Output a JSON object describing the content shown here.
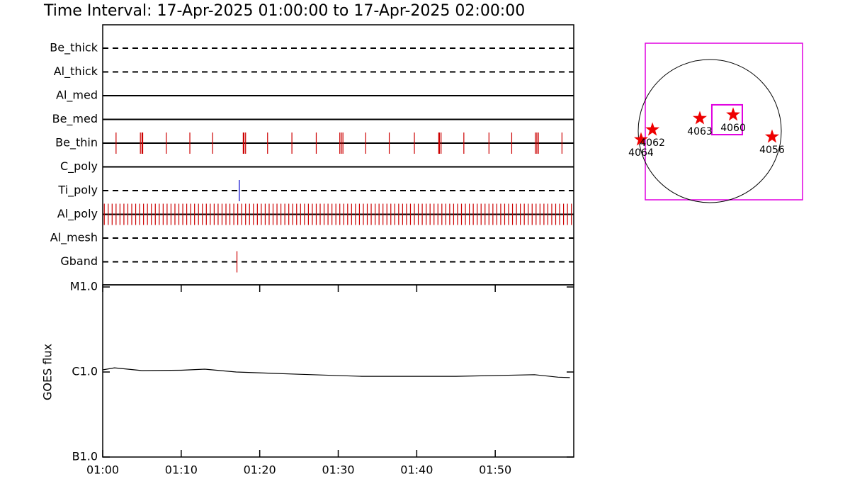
{
  "chart_data": [
    {
      "type": "timeline",
      "title": "Time Interval: 17-Apr-2025 01:00:00 to 17-Apr-2025 02:00:00",
      "xlim": [
        0,
        60
      ],
      "rows": [
        {
          "name": "Be_thick",
          "style": "dashed",
          "color": "#cc0000",
          "events": []
        },
        {
          "name": "Al_thick",
          "style": "dashed",
          "color": "#cc0000",
          "events": []
        },
        {
          "name": "Al_med",
          "style": "solid",
          "color": "#cc0000",
          "events": []
        },
        {
          "name": "Be_med",
          "style": "solid",
          "color": "#cc0000",
          "events": []
        },
        {
          "name": "Be_thin",
          "style": "solid",
          "color": "#cc0000",
          "events": [
            1.7,
            4.8,
            5.0,
            5.1,
            8.1,
            11.1,
            14.0,
            17.9,
            18.0,
            18.2,
            21.0,
            24.1,
            27.2,
            30.2,
            30.4,
            30.6,
            33.5,
            36.5,
            39.7,
            42.8,
            42.9,
            43.1,
            46.0,
            49.2,
            52.1,
            55.1,
            55.3,
            55.5,
            58.5
          ]
        },
        {
          "name": "C_poly",
          "style": "solid",
          "color": "#cc0000",
          "events": []
        },
        {
          "name": "Ti_poly",
          "style": "dashed",
          "color": "#0000cc",
          "events": [
            17.4
          ]
        },
        {
          "name": "Al_poly",
          "style": "solid",
          "color": "#cc0000",
          "events": [
            0.2,
            0.7,
            1.2,
            1.7,
            2.2,
            2.7,
            3.2,
            3.7,
            4.2,
            4.7,
            5.2,
            5.7,
            6.2,
            6.7,
            7.2,
            7.7,
            8.2,
            8.7,
            9.2,
            9.7,
            10.2,
            10.7,
            11.2,
            11.7,
            12.2,
            12.7,
            13.2,
            13.7,
            14.2,
            14.7,
            15.2,
            15.7,
            16.2,
            16.7,
            17.2,
            17.7,
            18.2,
            18.7,
            19.2,
            19.7,
            20.2,
            20.7,
            21.2,
            21.7,
            22.2,
            22.7,
            23.2,
            23.7,
            24.2,
            24.7,
            25.2,
            25.7,
            26.2,
            26.7,
            27.2,
            27.7,
            28.2,
            28.7,
            29.2,
            29.7,
            30.2,
            30.7,
            31.2,
            31.7,
            32.2,
            32.7,
            33.2,
            33.7,
            34.2,
            34.7,
            35.2,
            35.7,
            36.2,
            36.7,
            37.2,
            37.7,
            38.2,
            38.7,
            39.2,
            39.7,
            40.2,
            40.7,
            41.2,
            41.7,
            42.2,
            42.7,
            43.2,
            43.7,
            44.2,
            44.7,
            45.2,
            45.7,
            46.2,
            46.7,
            47.2,
            47.7,
            48.2,
            48.7,
            49.2,
            49.7,
            50.2,
            50.7,
            51.2,
            51.7,
            52.2,
            52.7,
            53.2,
            53.7,
            54.2,
            54.7,
            55.2,
            55.7,
            56.2,
            56.7,
            57.2,
            57.7,
            58.2,
            58.7,
            59.2,
            59.7
          ]
        },
        {
          "name": "Al_mesh",
          "style": "dashed",
          "color": "#cc0000",
          "events": []
        },
        {
          "name": "Gband",
          "style": "dashed",
          "color": "#cc0000",
          "events": [
            17.1
          ]
        }
      ]
    },
    {
      "type": "line",
      "ylabel": "GOES flux",
      "log": true,
      "color": "#000000",
      "xlim": [
        0,
        60
      ],
      "xticks": [
        {
          "value": 0,
          "label": "01:00"
        },
        {
          "value": 10,
          "label": "01:10"
        },
        {
          "value": 20,
          "label": "01:20"
        },
        {
          "value": 30,
          "label": "01:30"
        },
        {
          "value": 40,
          "label": "01:40"
        },
        {
          "value": 50,
          "label": "01:50"
        }
      ],
      "ylim": [
        1e-07,
        1e-05
      ],
      "yticks": [
        {
          "value": 1e-05,
          "label": "M1.0"
        },
        {
          "value": 1e-06,
          "label": "C1.0"
        },
        {
          "value": 1e-07,
          "label": "B1.0"
        }
      ],
      "x": [
        0,
        1.5,
        5,
        10,
        13,
        17,
        25,
        33,
        45,
        55,
        58,
        59.5
      ],
      "values": [
        1.06e-06,
        1.12e-06,
        1.04e-06,
        1.05e-06,
        1.08e-06,
        1e-06,
        9.4e-07,
        8.9e-07,
        8.9e-07,
        9.3e-07,
        8.7e-07,
        8.6e-07
      ]
    },
    {
      "type": "map",
      "xlim": [
        -865,
        1245
      ],
      "ylim": [
        -922,
        1178
      ],
      "radius": 960,
      "box_color": "#e000e0",
      "subfield": [
        28,
        437,
        -48,
        352
      ],
      "regions": [
        {
          "name": "4064",
          "x": -922,
          "y": -114
        },
        {
          "name": "4062",
          "x": -769,
          "y": 19
        },
        {
          "name": "4063",
          "x": -133,
          "y": 171
        },
        {
          "name": "4060",
          "x": 314,
          "y": 219
        },
        {
          "name": "4056",
          "x": 836,
          "y": -76
        }
      ],
      "marker_color": "#ee0000"
    }
  ]
}
